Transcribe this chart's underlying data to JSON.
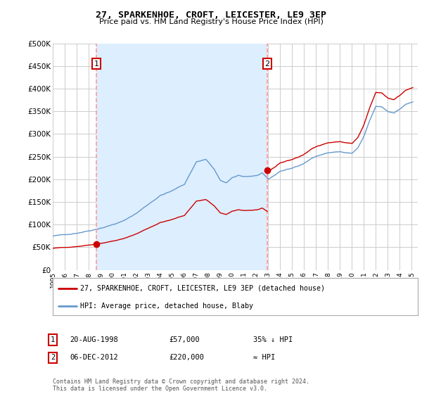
{
  "title": "27, SPARKENHOE, CROFT, LEICESTER, LE9 3EP",
  "subtitle": "Price paid vs. HM Land Registry's House Price Index (HPI)",
  "ylim": [
    0,
    500000
  ],
  "yticks": [
    0,
    50000,
    100000,
    150000,
    200000,
    250000,
    300000,
    350000,
    400000,
    450000,
    500000
  ],
  "ytick_labels": [
    "£0",
    "£50K",
    "£100K",
    "£150K",
    "£200K",
    "£250K",
    "£300K",
    "£350K",
    "£400K",
    "£450K",
    "£500K"
  ],
  "xlim_min": 1995.0,
  "xlim_max": 2025.5,
  "background_color": "#ffffff",
  "plot_bg_color": "#ffffff",
  "grid_color": "#cccccc",
  "shade_color": "#ddeeff",
  "sale1_date": 1998.64,
  "sale1_price": 57000,
  "sale2_date": 2012.92,
  "sale2_price": 220000,
  "sale_color": "#cc0000",
  "hpi_color": "#6699cc",
  "vline_color": "#ff9999",
  "legend_label_sale": "27, SPARKENHOE, CROFT, LEICESTER, LE9 3EP (detached house)",
  "legend_label_hpi": "HPI: Average price, detached house, Blaby",
  "footer": "Contains HM Land Registry data © Crown copyright and database right 2024.\nThis data is licensed under the Open Government Licence v3.0.",
  "table_rows": [
    {
      "num": "1",
      "date": "20-AUG-1998",
      "price": "£57,000",
      "hpi": "35% ↓ HPI"
    },
    {
      "num": "2",
      "date": "06-DEC-2012",
      "price": "£220,000",
      "hpi": "≈ HPI"
    }
  ]
}
